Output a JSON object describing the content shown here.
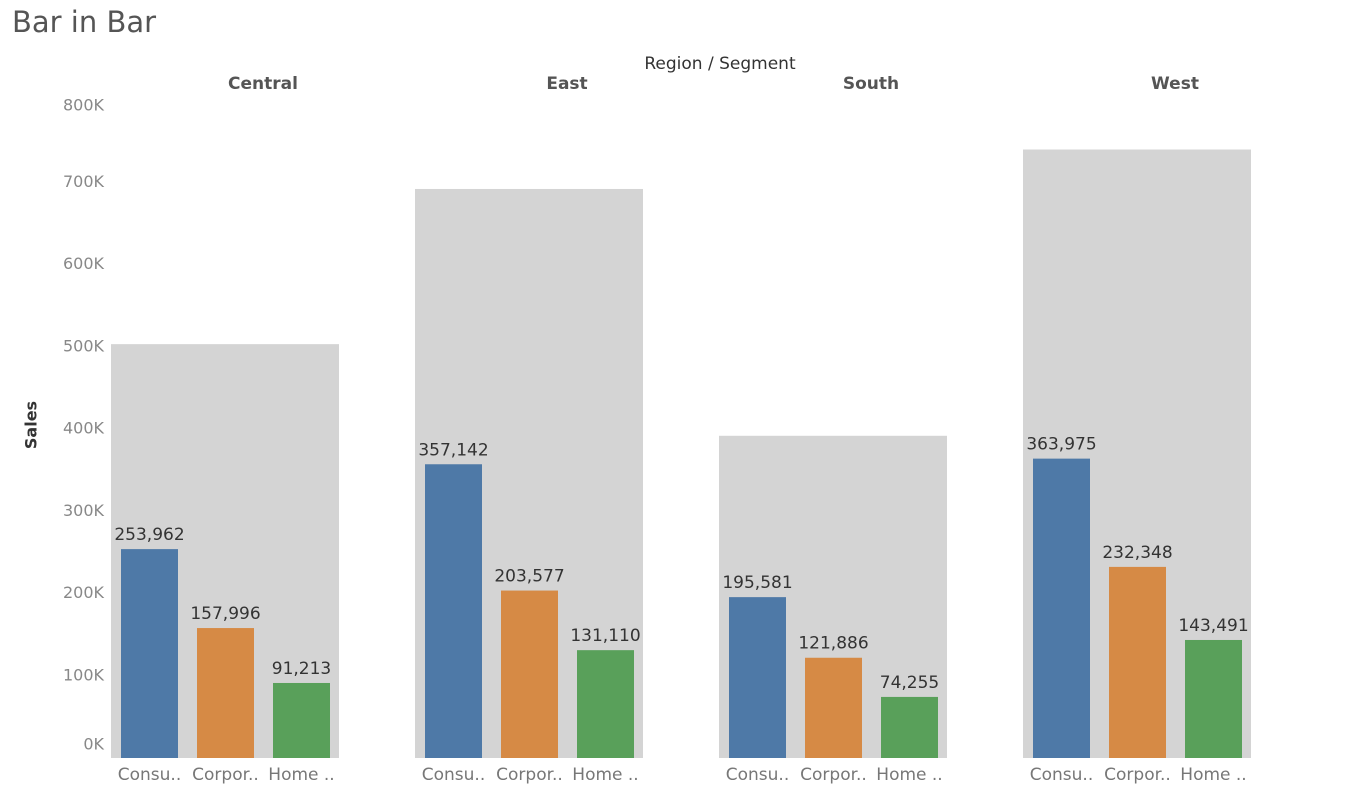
{
  "chart_data": {
    "type": "bar-in-bar",
    "title": "Bar in Bar",
    "x_label": "Region / Segment",
    "y_label": "Sales",
    "categories": [
      "Consu..",
      "Corpor..",
      "Home .."
    ],
    "colors": [
      "#4e79a7",
      "#d68a45",
      "#59a05a"
    ],
    "total_color": "#d4d4d4",
    "panels": [
      {
        "name": "Central",
        "total": 503171,
        "values": [
          253962,
          157996,
          91213
        ],
        "value_labels": [
          "253,962",
          "157,996",
          "91,213"
        ]
      },
      {
        "name": "East",
        "total": 691829,
        "values": [
          357142,
          203577,
          131110
        ],
        "value_labels": [
          "357,142",
          "203,577",
          "131,110"
        ]
      },
      {
        "name": "South",
        "total": 391722,
        "values": [
          195581,
          121886,
          74255
        ],
        "value_labels": [
          "195,581",
          "121,886",
          "74,255"
        ]
      },
      {
        "name": "West",
        "total": 739814,
        "values": [
          363975,
          232348,
          143491
        ],
        "value_labels": [
          "363,975",
          "232,348",
          "143,491"
        ]
      }
    ],
    "ylim": [
      0,
      800000
    ],
    "yticks": [
      {
        "value": 0,
        "label": "0K"
      },
      {
        "value": 100000,
        "label": "100K"
      },
      {
        "value": 200000,
        "label": "200K"
      },
      {
        "value": 300000,
        "label": "300K"
      },
      {
        "value": 400000,
        "label": "400K"
      },
      {
        "value": 500000,
        "label": "500K"
      },
      {
        "value": 600000,
        "label": "600K"
      },
      {
        "value": 700000,
        "label": "700K"
      },
      {
        "value": 800000,
        "label": "800K"
      }
    ]
  }
}
